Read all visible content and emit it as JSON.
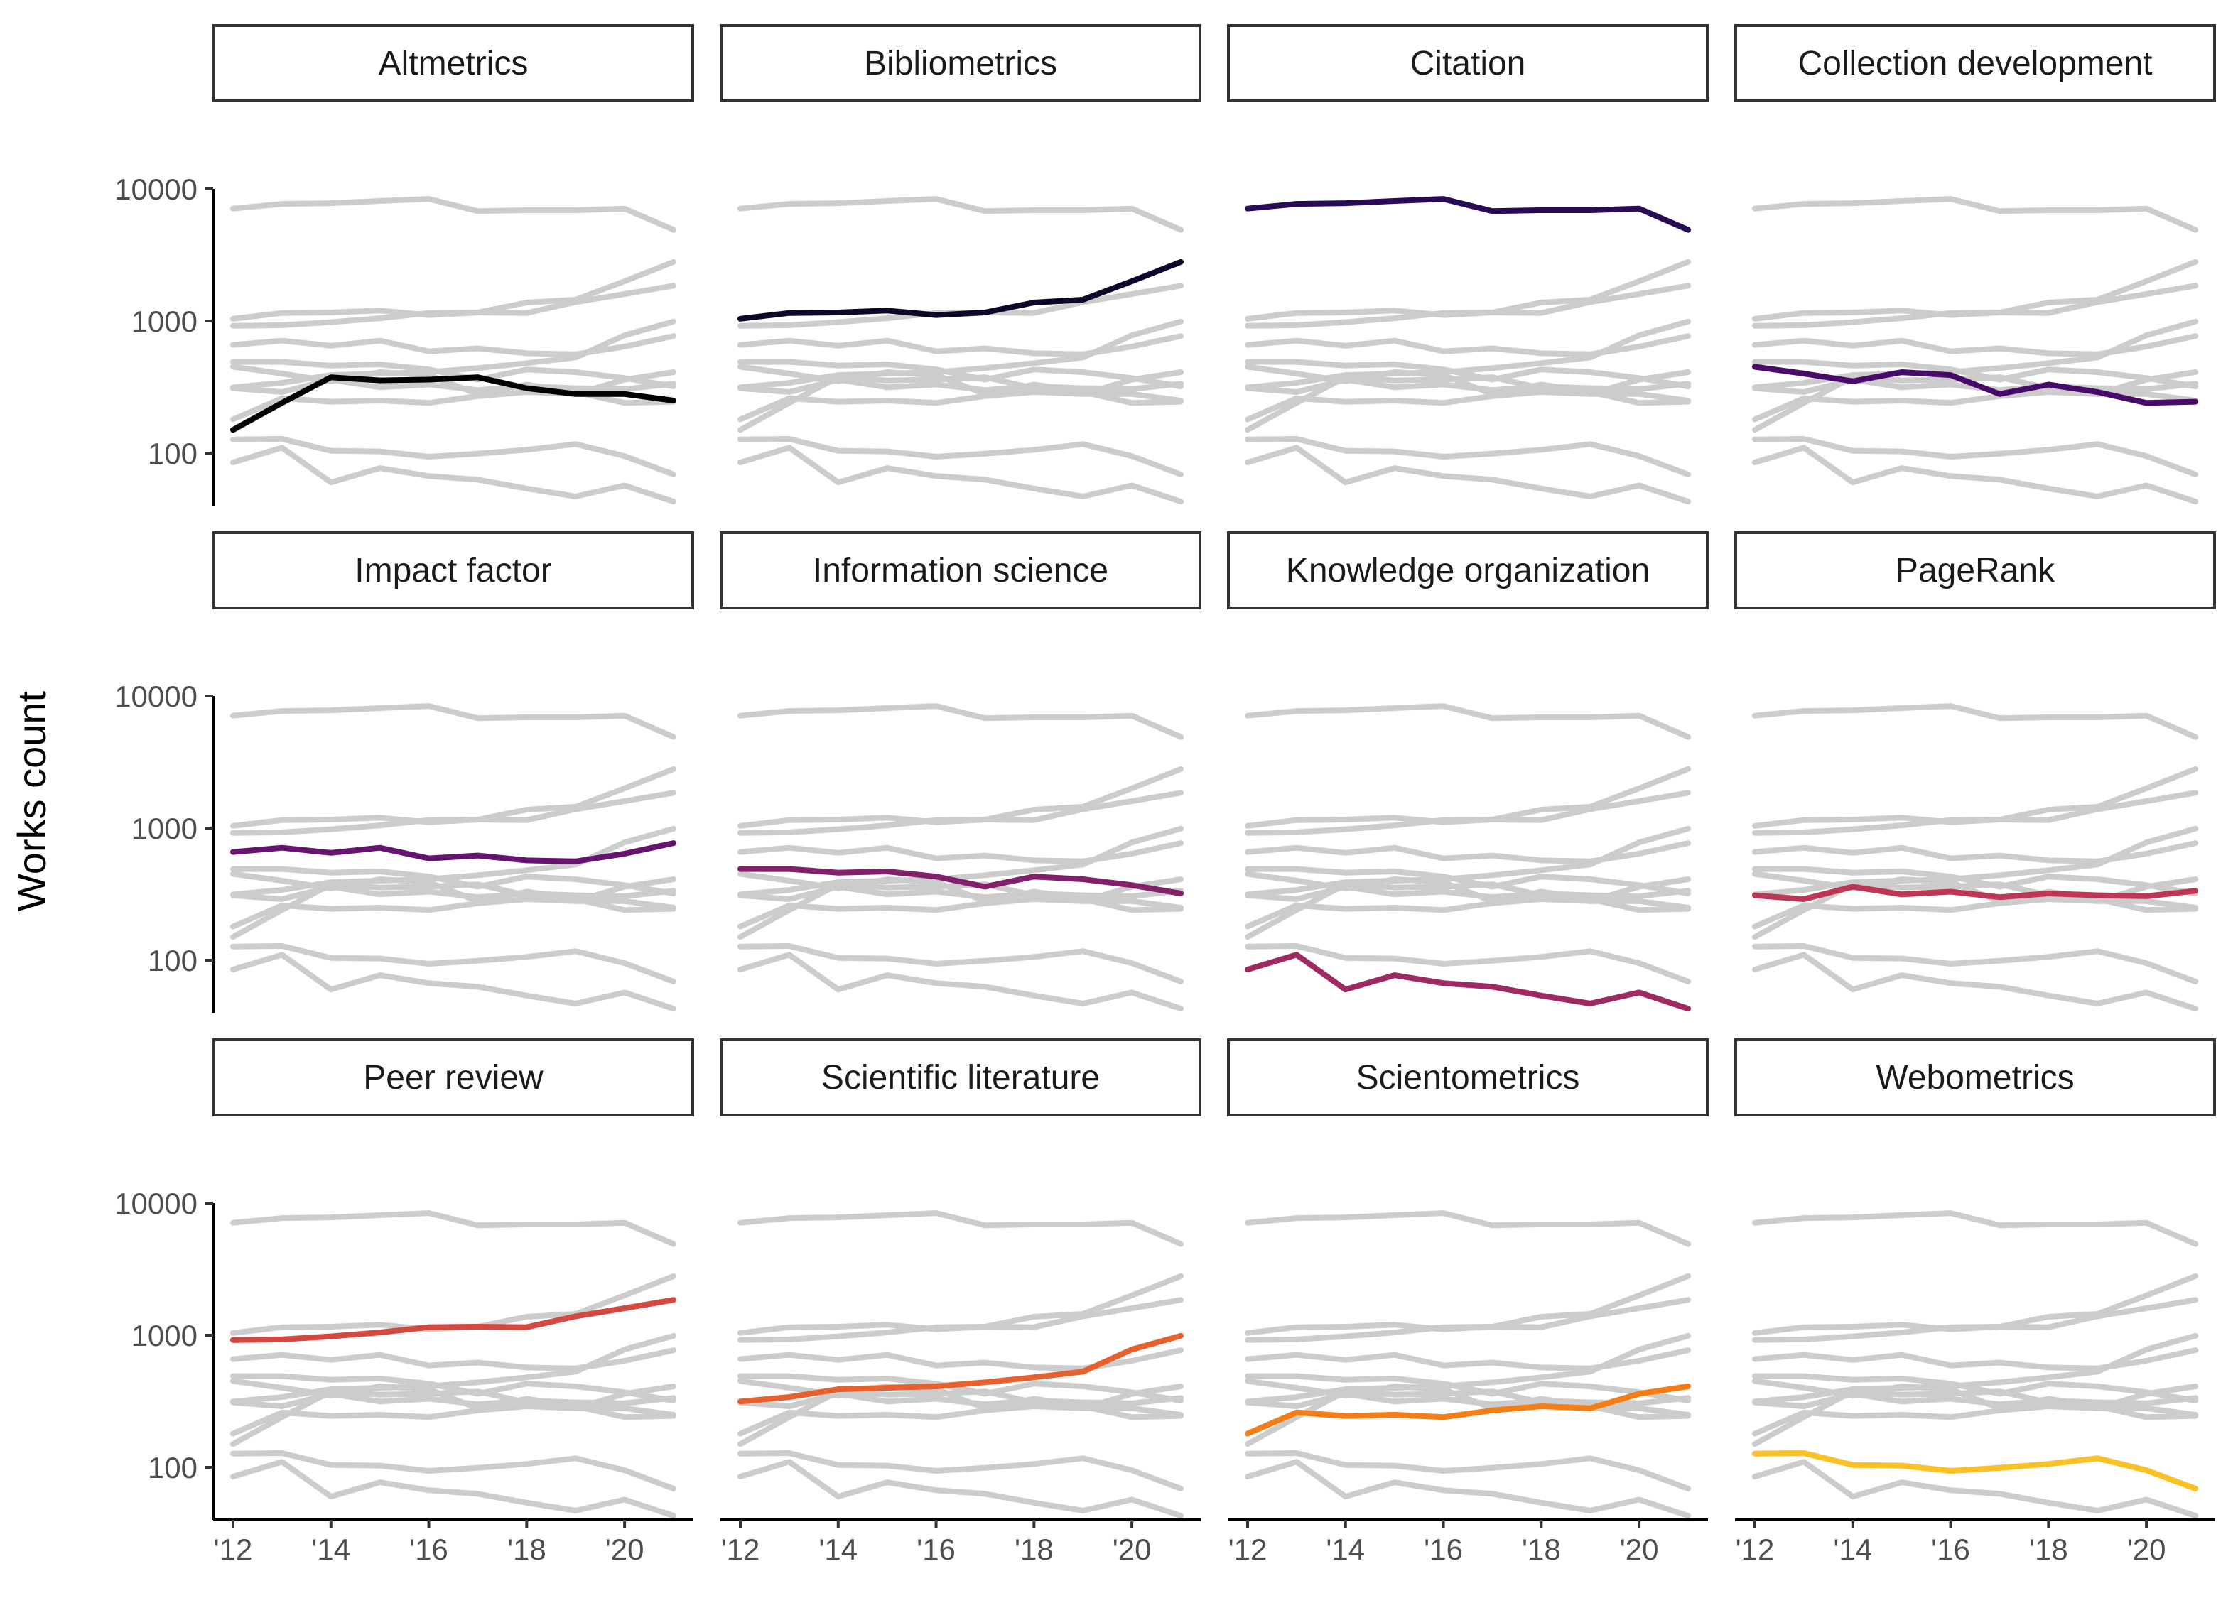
{
  "chart_data": {
    "type": "line",
    "subtype": "small-multiples",
    "ylabel": "Works count",
    "xlabel": "",
    "y_scale": "log10",
    "ylim": [
      40,
      10000
    ],
    "y_ticks": [
      100,
      1000,
      10000
    ],
    "y_tick_labels": [
      "100",
      "1000",
      "10000"
    ],
    "x": [
      2012,
      2013,
      2014,
      2015,
      2016,
      2017,
      2018,
      2019,
      2020,
      2021
    ],
    "x_ticks": [
      2012,
      2014,
      2016,
      2018,
      2020
    ],
    "x_tick_labels": [
      "'12",
      "'14",
      "'16",
      "'18",
      "'20"
    ],
    "grid": false,
    "legend": "none",
    "background_color": "#cccccc",
    "series": [
      {
        "name": "Altmetrics",
        "color": "#000004",
        "values": [
          150,
          240,
          375,
          355,
          360,
          375,
          310,
          280,
          280,
          250
        ]
      },
      {
        "name": "Bibliometrics",
        "color": "#0d0829",
        "values": [
          1040,
          1150,
          1160,
          1200,
          1110,
          1160,
          1380,
          1450,
          2000,
          2800
        ]
      },
      {
        "name": "Citation",
        "color": "#280b54",
        "values": [
          7100,
          7700,
          7800,
          8100,
          8400,
          6800,
          6900,
          6900,
          7100,
          4900
        ]
      },
      {
        "name": "Collection development",
        "color": "#480b6a",
        "values": [
          450,
          400,
          350,
          410,
          390,
          280,
          330,
          290,
          240,
          245
        ]
      },
      {
        "name": "Impact factor",
        "color": "#65156e",
        "values": [
          660,
          710,
          650,
          710,
          590,
          620,
          570,
          560,
          640,
          770
        ]
      },
      {
        "name": "Information science",
        "color": "#82206c",
        "values": [
          490,
          490,
          460,
          470,
          430,
          360,
          430,
          410,
          370,
          320
        ]
      },
      {
        "name": "Knowledge organization",
        "color": "#9f2a63",
        "values": [
          85,
          110,
          60,
          77,
          67,
          63,
          54,
          47,
          57,
          43
        ]
      },
      {
        "name": "PageRank",
        "color": "#bb3754",
        "values": [
          310,
          290,
          360,
          315,
          330,
          300,
          320,
          310,
          305,
          335
        ]
      },
      {
        "name": "Peer review",
        "color": "#d44842",
        "values": [
          920,
          930,
          980,
          1050,
          1150,
          1160,
          1150,
          1390,
          1600,
          1850
        ]
      },
      {
        "name": "Scientific literature",
        "color": "#e8602d",
        "values": [
          315,
          340,
          390,
          400,
          410,
          440,
          480,
          530,
          780,
          990
        ]
      },
      {
        "name": "Scientometrics",
        "color": "#f57d15",
        "values": [
          180,
          260,
          245,
          250,
          240,
          270,
          290,
          280,
          360,
          410
        ]
      },
      {
        "name": "Webometrics",
        "color": "#fac127",
        "values": [
          127,
          128,
          104,
          103,
          94,
          99,
          106,
          117,
          95,
          69
        ]
      }
    ]
  }
}
